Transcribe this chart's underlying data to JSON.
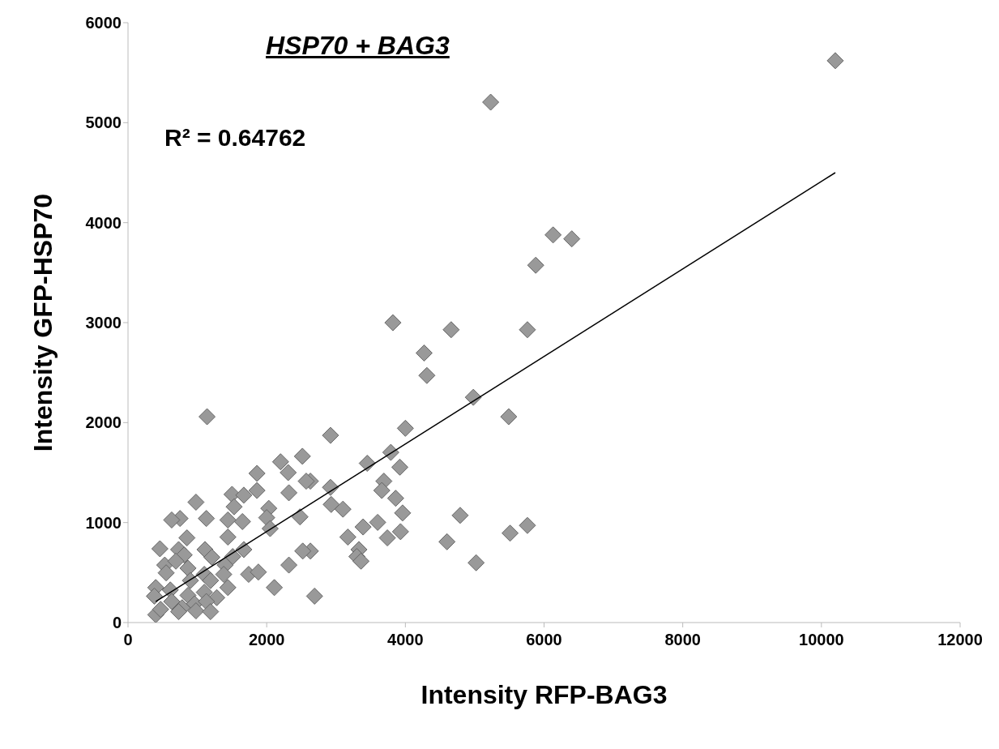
{
  "chart_data": {
    "type": "scatter",
    "title": "HSP70 + BAG3",
    "xlabel": "Intensity RFP-BAG3",
    "ylabel": "Intensity GFP-HSP70",
    "annotations": [
      "R² = 0.64762"
    ],
    "xlim": [
      0,
      12000
    ],
    "xticks": [
      0,
      2000,
      4000,
      6000,
      8000,
      10000,
      12000
    ],
    "ylim": [
      0,
      6000
    ],
    "yticks": [
      0,
      1000,
      2000,
      3000,
      4000,
      5000,
      6000
    ],
    "marker": "diamond",
    "series": [
      {
        "color": "#999999",
        "x": [
          10200,
          5230,
          6130,
          6400,
          5880,
          5760,
          4660,
          3820,
          4270,
          4310,
          4980,
          5490,
          4000,
          1140,
          2920,
          3790,
          3450,
          3920,
          3690,
          3660,
          3860,
          3960,
          2920,
          2630,
          2930,
          3100,
          3390,
          3600,
          3930,
          3740,
          3170,
          3330,
          3300,
          3360,
          4790,
          4600,
          5510,
          5760,
          5020,
          2630,
          2515,
          2200,
          2310,
          1860,
          2570,
          2320,
          1860,
          1500,
          1670,
          1530,
          980,
          2030,
          2000,
          1650,
          1440,
          1130,
          750,
          630,
          2480,
          2050,
          850,
          1440,
          460,
          1110,
          730,
          810,
          1670,
          1210,
          1510,
          1400,
          1740,
          1880,
          2520,
          2320,
          2110,
          2690,
          530,
          550,
          690,
          865,
          1100,
          1190,
          1380,
          900,
          400,
          610,
          865,
          1100,
          1280,
          1440,
          380,
          630,
          780,
          960,
          1130,
          400,
          730,
          980,
          1190,
          470
        ],
        "values": [
          5620,
          5205,
          3877,
          3838,
          3574,
          2929,
          2929,
          2999,
          2696,
          2471,
          2253,
          2059,
          1943,
          2059,
          1872,
          1702,
          1593,
          1554,
          1414,
          1321,
          1243,
          1096,
          1352,
          1414,
          1181,
          1134,
          956,
          1002,
          909,
          847,
          855,
          730,
          660,
          614,
          1072,
          808,
          894,
          971,
          598,
          715,
          1663,
          1608,
          1500,
          1492,
          1414,
          1298,
          1321,
          1282,
          1274,
          1158,
          1204,
          1142,
          1049,
          1010,
          1026,
          1041,
          1041,
          1026,
          1057,
          940,
          847,
          855,
          738,
          730,
          730,
          676,
          730,
          653,
          660,
          575,
          482,
          505,
          715,
          575,
          350,
          264,
          575,
          497,
          614,
          544,
          482,
          420,
          482,
          420,
          350,
          326,
          272,
          303,
          249,
          350,
          264,
          210,
          148,
          187,
          210,
          78,
          109,
          117,
          109,
          132
        ]
      },
      {
        "type": "line",
        "color": "#000000",
        "x": [
          400,
          10200
        ],
        "values": [
          210,
          4500
        ],
        "marker": "none"
      }
    ]
  }
}
